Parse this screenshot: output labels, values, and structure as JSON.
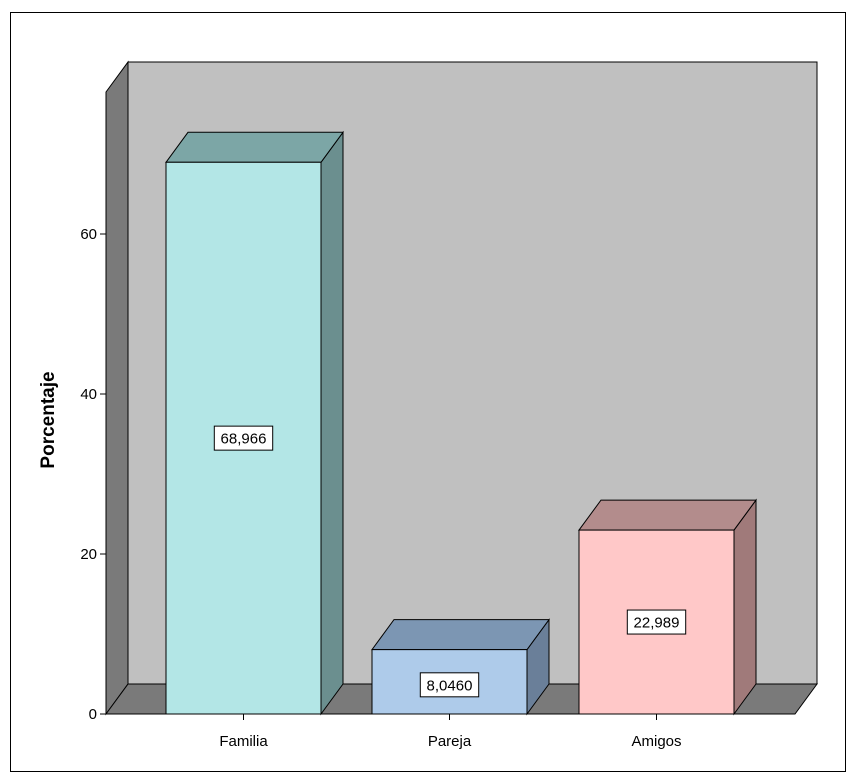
{
  "chart_data": {
    "type": "bar",
    "categories": [
      "Familia",
      "Pareja",
      "Amigos"
    ],
    "values": [
      68.966,
      8.046,
      22.989
    ],
    "data_labels": [
      "68,966",
      "8,0460",
      "22,989"
    ],
    "title": "",
    "xlabel": "",
    "ylabel": "Porcentaje",
    "ylim": [
      0,
      70
    ],
    "yticks": [
      0,
      20,
      40,
      60
    ],
    "ytick_labels": [
      "0",
      "20",
      "40",
      "60"
    ],
    "grid": false,
    "legend": "none",
    "style": "3d",
    "colors": {
      "bars": [
        "#b3e6e6",
        "#aecbea",
        "#ffc8c8"
      ],
      "bar_sides": [
        "#6b8f8f",
        "#6a7f99",
        "#a07a7a"
      ],
      "bar_tops": [
        "#7ca6a6",
        "#7c96b3",
        "#b38c8c"
      ],
      "back_wall": "#c0c0c0",
      "side_wall": "#7a7a7a",
      "floor": "#7a7a7a"
    }
  }
}
